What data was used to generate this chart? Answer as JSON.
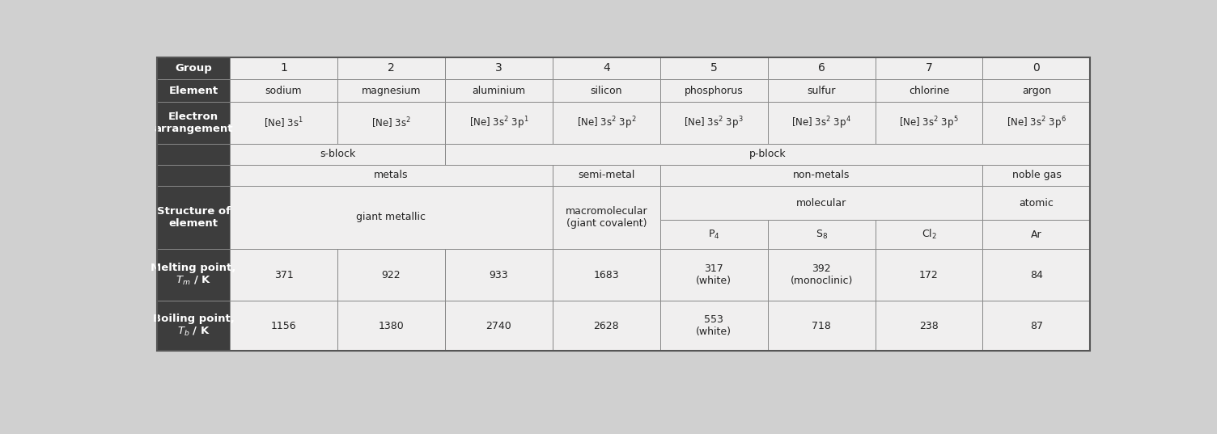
{
  "dark_bg": "#3d3d3d",
  "light_bg": "#f0efef",
  "border_color": "#888888",
  "white_text": "#ffffff",
  "dark_text": "#222222",
  "groups": [
    "1",
    "2",
    "3",
    "4",
    "5",
    "6",
    "7",
    "0"
  ],
  "elements": [
    "sodium",
    "magnesium",
    "aluminium",
    "silicon",
    "phosphorus",
    "sulfur",
    "chlorine",
    "argon"
  ],
  "ea_display": [
    "[Ne] 3s$^1$",
    "[Ne] 3s$^2$",
    "[Ne] 3s$^2$ 3p$^1$",
    "[Ne] 3s$^2$ 3p$^2$",
    "[Ne] 3s$^2$ 3p$^3$",
    "[Ne] 3s$^2$ 3p$^4$",
    "[Ne] 3s$^2$ 3p$^5$",
    "[Ne] 3s$^2$ 3p$^6$"
  ],
  "melting_points": [
    "371",
    "922",
    "933",
    "1683",
    "317\n(white)",
    "392\n(monoclinic)",
    "172",
    "84"
  ],
  "boiling_points": [
    "1156",
    "1380",
    "2740",
    "2628",
    "553\n(white)",
    "718",
    "238",
    "87"
  ],
  "formulas": [
    "P$_4$",
    "S$_8$",
    "Cl$_2$",
    "Ar"
  ]
}
